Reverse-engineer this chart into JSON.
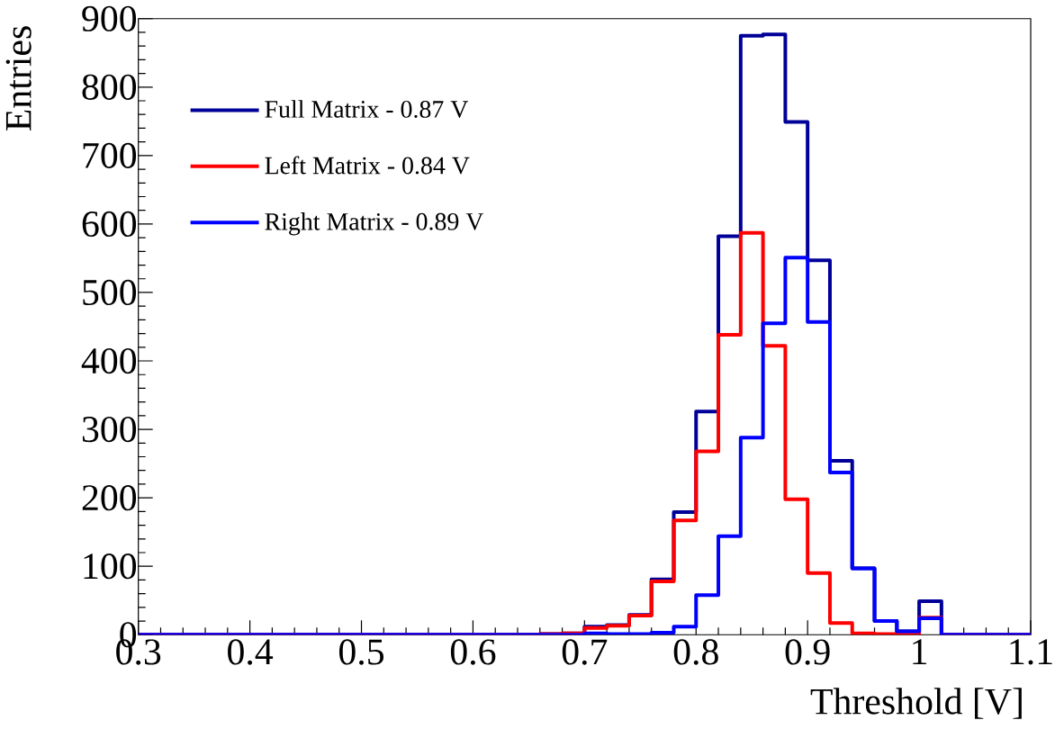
{
  "chart_data": {
    "type": "histogram",
    "xlabel": "Threshold [V]",
    "ylabel": "Entries",
    "bins": [
      0.3,
      0.32,
      0.34,
      0.36,
      0.38,
      0.4,
      0.42,
      0.44,
      0.46,
      0.48,
      0.5,
      0.52,
      0.54,
      0.56,
      0.58,
      0.6,
      0.62,
      0.64,
      0.66,
      0.68,
      0.7,
      0.72,
      0.74,
      0.76,
      0.78,
      0.8,
      0.82,
      0.84,
      0.86,
      0.88,
      0.9,
      0.92,
      0.94,
      0.96,
      0.98,
      1.0,
      1.02,
      1.04,
      1.06,
      1.08,
      1.1
    ],
    "series": [
      {
        "name": "Full Matrix - 0.87 V",
        "color": "#000099",
        "values": [
          0,
          0,
          0,
          0,
          0,
          0,
          0,
          0,
          0,
          0,
          0,
          0,
          0,
          0,
          0,
          0,
          0,
          0,
          1,
          2,
          12,
          14,
          29,
          81,
          179,
          326,
          582,
          875,
          877,
          749,
          547,
          254,
          97,
          20,
          5,
          49,
          0,
          0,
          0,
          0
        ]
      },
      {
        "name": "Left Matrix - 0.84 V",
        "color": "#ff0000",
        "values": [
          0,
          0,
          0,
          0,
          0,
          0,
          0,
          0,
          0,
          0,
          0,
          0,
          0,
          0,
          0,
          0,
          0,
          0,
          1,
          2,
          10,
          13,
          28,
          78,
          167,
          268,
          438,
          587,
          422,
          198,
          90,
          17,
          2,
          1,
          0,
          25,
          0,
          0,
          0,
          0
        ]
      },
      {
        "name": "Right Matrix - 0.89 V",
        "color": "#0000ff",
        "values": [
          0,
          0,
          0,
          0,
          0,
          0,
          0,
          0,
          0,
          0,
          0,
          0,
          0,
          0,
          0,
          0,
          0,
          0,
          0,
          0,
          2,
          1,
          1,
          3,
          12,
          58,
          144,
          288,
          455,
          551,
          457,
          237,
          97,
          20,
          5,
          24,
          0,
          0,
          0,
          0
        ]
      }
    ],
    "xlim": [
      0.3,
      1.1
    ],
    "xticks": [
      0.3,
      0.4,
      0.5,
      0.6,
      0.7,
      0.8,
      0.9,
      1,
      1.1
    ],
    "ylim": [
      0,
      900
    ],
    "yticks": [
      0,
      100,
      200,
      300,
      400,
      500,
      600,
      700,
      800,
      900
    ],
    "legend": "top left"
  }
}
